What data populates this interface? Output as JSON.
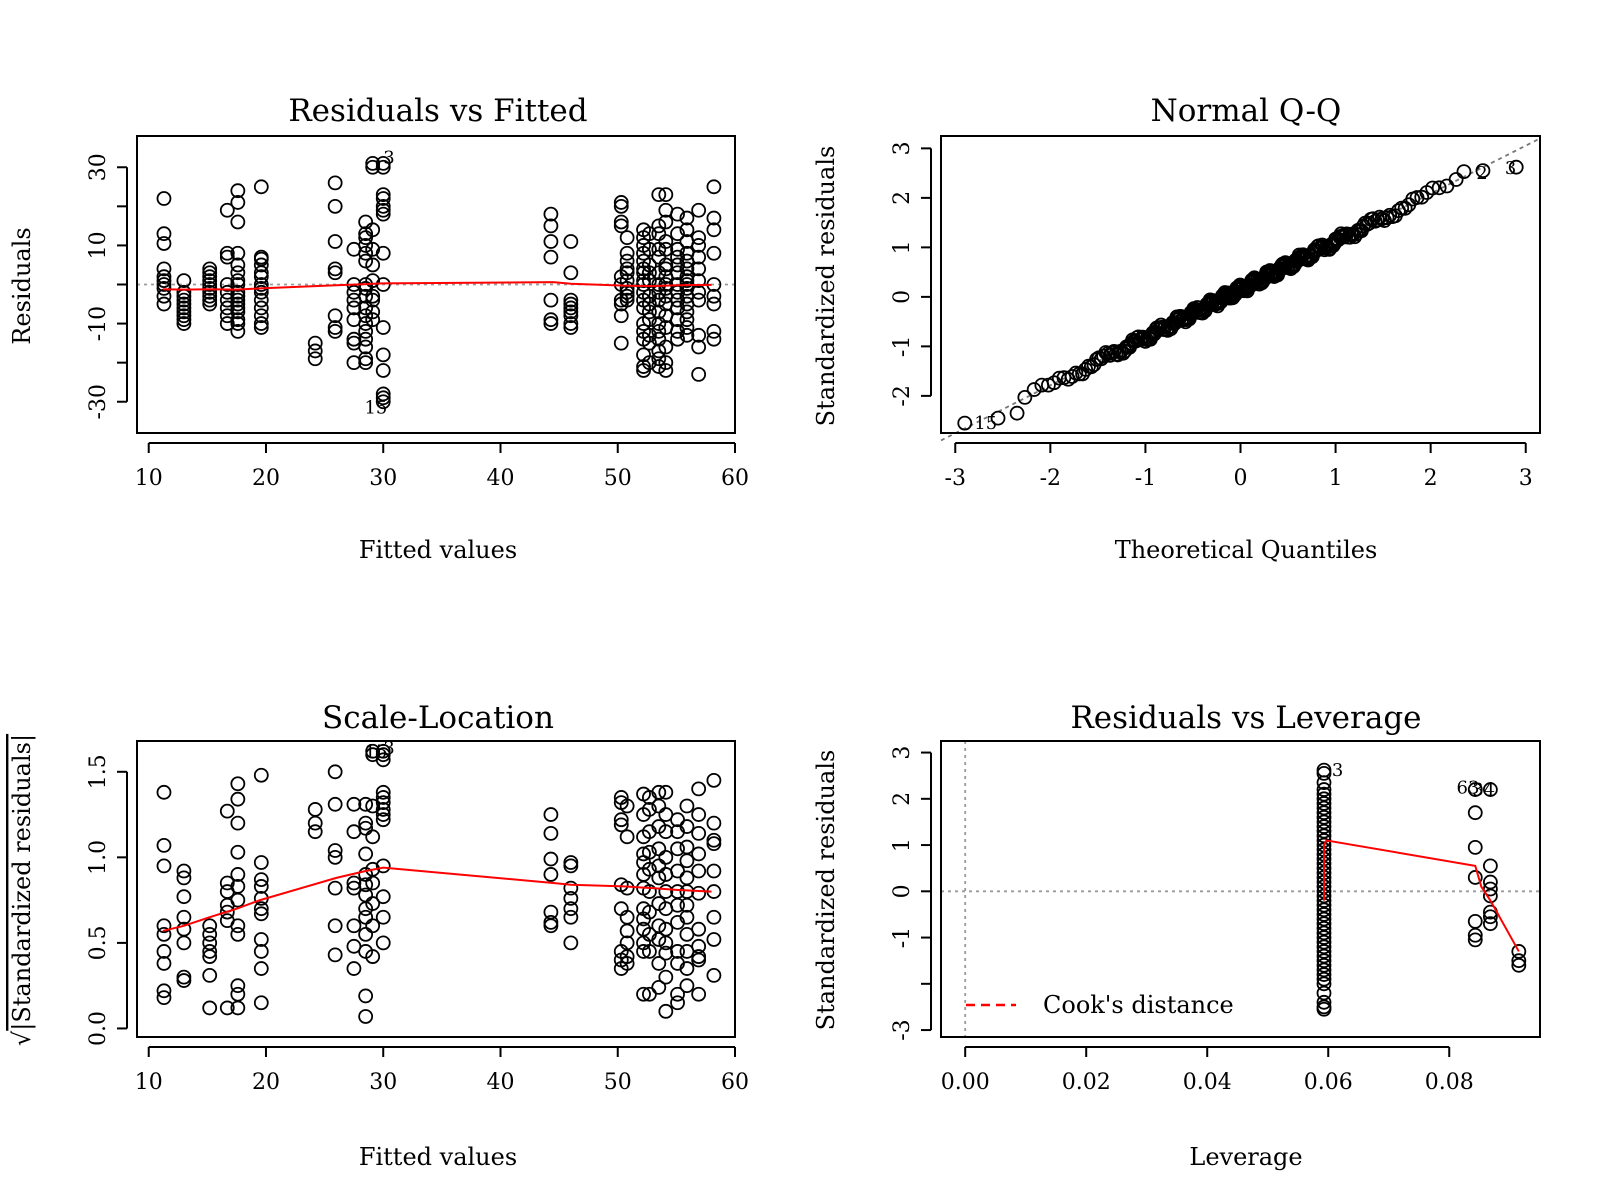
{
  "chart_data": [
    {
      "id": "rvf",
      "type": "scatter",
      "title": "Residuals vs Fitted",
      "xlabel": "Fitted values",
      "ylabel": "Residuals",
      "xlim": [
        9,
        60
      ],
      "ylim": [
        -38,
        38
      ],
      "xticks": [
        10,
        20,
        30,
        40,
        50,
        60
      ],
      "yticks": [
        -30,
        -20,
        -10,
        0,
        10,
        20,
        30
      ],
      "ytick_labels": [
        "-30",
        "",
        "-10",
        "",
        "10",
        "",
        "30"
      ],
      "ref_line": {
        "style": "dotted",
        "y": 0
      },
      "smooth": {
        "x": [
          11.2,
          13,
          15.2,
          17.5,
          19.5,
          26,
          28.5,
          30,
          44.5,
          46,
          50.5,
          53,
          55,
          58
        ],
        "y": [
          -1.2,
          -1.3,
          -1.2,
          -1.3,
          -1.0,
          -0.2,
          0.1,
          0.3,
          0.6,
          0.2,
          -0.3,
          -0.4,
          -0.2,
          -0.1
        ]
      },
      "clusters": [
        {
          "x": 11.3,
          "y": [
            22,
            13,
            10.5,
            4,
            1,
            2,
            0,
            -1,
            -3,
            -5
          ]
        },
        {
          "x": 13.0,
          "y": [
            1,
            -2,
            -4,
            -6,
            -8,
            -10,
            -3,
            -5,
            -7,
            -9
          ]
        },
        {
          "x": 15.2,
          "y": [
            4,
            2,
            0,
            -2,
            -4,
            -5,
            1,
            -1,
            -3,
            3
          ]
        },
        {
          "x": 16.7,
          "y": [
            19,
            8,
            7,
            0,
            -2,
            -4,
            -6,
            -8,
            -10
          ]
        },
        {
          "x": 17.6,
          "y": [
            24,
            21,
            16,
            8,
            3,
            0,
            -2,
            -4,
            -6,
            -9,
            -12,
            5,
            1,
            -3,
            -5,
            -7,
            -10
          ]
        },
        {
          "x": 19.6,
          "y": [
            25,
            7,
            6.5,
            2,
            0,
            -2,
            -4,
            -6,
            -8,
            -10,
            -11,
            5,
            3,
            -1
          ]
        },
        {
          "x": 24.2,
          "y": [
            -15,
            -17,
            -19
          ]
        },
        {
          "x": 25.9,
          "y": [
            26,
            20,
            11,
            4,
            3,
            -8,
            -11,
            -12
          ]
        },
        {
          "x": 27.5,
          "y": [
            9,
            0,
            -2,
            -4,
            -6,
            -9,
            -14,
            -15,
            -20
          ]
        },
        {
          "x": 28.5,
          "y": [
            16,
            13,
            12,
            10,
            8,
            6,
            0,
            -1,
            -3,
            -6,
            -8,
            -10,
            -12,
            -14,
            -16,
            -19,
            -20
          ]
        },
        {
          "x": 29.1,
          "y": [
            31,
            30,
            14,
            9,
            5,
            1,
            -3,
            -4,
            -7,
            -9
          ]
        },
        {
          "x": 30.0,
          "y": [
            31,
            30,
            23,
            22,
            20,
            19,
            18,
            8,
            0,
            -11,
            -18,
            -22,
            -28,
            -29,
            -30
          ]
        },
        {
          "x": 44.3,
          "y": [
            18,
            15,
            11,
            7,
            -4,
            -9,
            -10
          ]
        },
        {
          "x": 46.0,
          "y": [
            11,
            3,
            -4,
            -5,
            -6,
            -7,
            -8,
            -10,
            -11
          ]
        },
        {
          "x": 50.3,
          "y": [
            21,
            20,
            16,
            15,
            2,
            0,
            -4,
            -5,
            -8,
            -15
          ]
        },
        {
          "x": 50.8,
          "y": [
            12,
            8,
            6,
            4,
            3,
            1,
            -1,
            -2,
            -3,
            -4
          ]
        },
        {
          "x": 52.2,
          "y": [
            14,
            12,
            10,
            8,
            6,
            4,
            3,
            1,
            0,
            -2,
            -4,
            -6,
            -10,
            -12,
            -14,
            -18,
            -21,
            -22
          ]
        },
        {
          "x": 52.7,
          "y": [
            13,
            9,
            5,
            3,
            1,
            -3,
            -5,
            -7,
            -9,
            -13,
            -15,
            -20
          ]
        },
        {
          "x": 53.5,
          "y": [
            23,
            15,
            13,
            9,
            7,
            3,
            0,
            -2,
            -4,
            -7,
            -10,
            -12,
            -14,
            -17,
            -19,
            -21
          ]
        },
        {
          "x": 54.1,
          "y": [
            23,
            19,
            16,
            11,
            9,
            5,
            4,
            2,
            0,
            -1,
            -3,
            -5,
            -8,
            -11,
            -16,
            -20,
            -22
          ]
        },
        {
          "x": 55.1,
          "y": [
            18,
            13,
            9,
            7,
            5,
            3,
            0,
            -2,
            -4,
            -6,
            -9,
            -12,
            -14
          ]
        },
        {
          "x": 55.9,
          "y": [
            17,
            14,
            11,
            8,
            6,
            4,
            2,
            1,
            0,
            -1,
            -3,
            -5,
            -7,
            -9,
            -11,
            -13
          ]
        },
        {
          "x": 56.9,
          "y": [
            19,
            12,
            10,
            7,
            4,
            1,
            -2,
            -4,
            -13,
            -16,
            -23
          ]
        },
        {
          "x": 58.2,
          "y": [
            25,
            17,
            14,
            8,
            0,
            -3,
            -5,
            -12,
            -14
          ]
        }
      ],
      "annotations": [
        {
          "text": "15",
          "x": 28.4,
          "y": -31.5
        },
        {
          "text": "3",
          "x": 30.0,
          "y": 32.5
        }
      ]
    },
    {
      "id": "qq",
      "type": "scatter",
      "title": "Normal Q-Q",
      "xlabel": "Theoretical Quantiles",
      "ylabel": "Standardized residuals",
      "xlim": [
        -3.15,
        3.15
      ],
      "ylim": [
        -2.75,
        3.25
      ],
      "xticks": [
        -3,
        -2,
        -1,
        0,
        1,
        2,
        3
      ],
      "yticks": [
        -2,
        -1,
        0,
        1,
        2,
        3
      ],
      "ref_line": {
        "style": "dashed",
        "x": [
          -3.15,
          3.15
        ],
        "y": [
          -2.9,
          3.2
        ]
      },
      "n": 300,
      "tail_points": [
        {
          "x": -2.9,
          "y": -2.55
        },
        {
          "x": -2.55,
          "y": -2.45
        },
        {
          "x": -2.35,
          "y": -2.35
        },
        {
          "x": 2.35,
          "y": 2.53
        },
        {
          "x": 2.55,
          "y": 2.55
        },
        {
          "x": 2.9,
          "y": 2.62
        }
      ],
      "annotations": [
        {
          "text": "15",
          "x": -2.8,
          "y": -2.55
        },
        {
          "text": "2",
          "x": 2.48,
          "y": 2.5
        },
        {
          "text": "3",
          "x": 2.78,
          "y": 2.6
        }
      ]
    },
    {
      "id": "sl",
      "type": "scatter",
      "title": "Scale-Location",
      "xlabel": "Fitted values",
      "ylabel": "√|Standardized residuals|",
      "ylabel_root": "√",
      "ylabel_text": "|Standardized residuals|",
      "xlim": [
        9,
        60
      ],
      "ylim": [
        -0.05,
        1.68
      ],
      "xticks": [
        10,
        20,
        30,
        40,
        50,
        60
      ],
      "yticks": [
        0.0,
        0.5,
        1.0,
        1.5
      ],
      "ytick_labels": [
        "0.0",
        "0.5",
        "1.0",
        "1.5"
      ],
      "smooth": {
        "x": [
          11.2,
          13,
          15.2,
          17.5,
          19.5,
          26,
          28.5,
          30,
          44.5,
          46,
          50.5,
          53,
          55,
          58
        ],
        "y": [
          0.57,
          0.6,
          0.65,
          0.7,
          0.75,
          0.88,
          0.92,
          0.94,
          0.85,
          0.84,
          0.83,
          0.82,
          0.81,
          0.8
        ]
      },
      "clusters": [
        {
          "x": 11.3,
          "y": [
            1.38,
            1.07,
            0.95,
            0.6,
            0.55,
            0.45,
            0.38,
            0.22,
            0.18
          ]
        },
        {
          "x": 13.0,
          "y": [
            0.92,
            0.88,
            0.77,
            0.65,
            0.58,
            0.5,
            0.3,
            0.28
          ]
        },
        {
          "x": 15.2,
          "y": [
            0.6,
            0.55,
            0.5,
            0.45,
            0.42,
            0.31,
            0.12
          ]
        },
        {
          "x": 16.7,
          "y": [
            1.27,
            0.85,
            0.8,
            0.72,
            0.68,
            0.63,
            0.12
          ]
        },
        {
          "x": 17.6,
          "y": [
            1.43,
            1.34,
            1.2,
            1.03,
            0.9,
            0.83,
            0.75,
            0.6,
            0.55,
            0.25,
            0.2,
            0.12
          ]
        },
        {
          "x": 19.6,
          "y": [
            1.48,
            0.97,
            0.87,
            0.83,
            0.76,
            0.7,
            0.67,
            0.52,
            0.45,
            0.35,
            0.15
          ]
        },
        {
          "x": 24.2,
          "y": [
            1.28,
            1.2,
            1.15
          ]
        },
        {
          "x": 25.9,
          "y": [
            1.5,
            1.31,
            1.04,
            1.0,
            0.82,
            0.6,
            0.43
          ]
        },
        {
          "x": 27.5,
          "y": [
            1.31,
            1.15,
            0.85,
            0.82,
            0.6,
            0.48,
            0.35
          ]
        },
        {
          "x": 28.5,
          "y": [
            1.31,
            1.2,
            1.17,
            1.02,
            0.9,
            0.84,
            0.78,
            0.7,
            0.65,
            0.55,
            0.45,
            0.19,
            0.07
          ]
        },
        {
          "x": 29.1,
          "y": [
            1.62,
            1.6,
            1.3,
            1.12,
            0.93,
            0.85,
            0.73,
            0.6,
            0.42
          ]
        },
        {
          "x": 30.0,
          "y": [
            1.62,
            1.6,
            1.57,
            1.38,
            1.35,
            1.32,
            1.28,
            1.25,
            1.22,
            0.95,
            0.77,
            0.65,
            0.5
          ]
        },
        {
          "x": 44.3,
          "y": [
            1.25,
            1.14,
            0.99,
            0.9,
            0.68,
            0.62,
            0.6
          ]
        },
        {
          "x": 46.0,
          "y": [
            0.97,
            0.95,
            0.82,
            0.76,
            0.7,
            0.65,
            0.5
          ]
        },
        {
          "x": 50.3,
          "y": [
            1.35,
            1.32,
            1.22,
            1.19,
            0.84,
            0.7,
            0.45,
            0.4,
            0.35
          ]
        },
        {
          "x": 50.8,
          "y": [
            1.3,
            1.12,
            0.82,
            0.65,
            0.57,
            0.5,
            0.42,
            0.38
          ]
        },
        {
          "x": 52.2,
          "y": [
            1.37,
            1.25,
            1.12,
            1.02,
            0.97,
            0.9,
            0.82,
            0.7,
            0.64,
            0.58,
            0.5,
            0.45,
            0.2
          ]
        },
        {
          "x": 52.7,
          "y": [
            1.35,
            1.28,
            1.15,
            1.03,
            0.93,
            0.8,
            0.68,
            0.55,
            0.45,
            0.2
          ]
        },
        {
          "x": 53.5,
          "y": [
            1.38,
            1.3,
            1.18,
            1.05,
            0.95,
            0.88,
            0.73,
            0.6,
            0.52,
            0.38,
            0.24
          ]
        },
        {
          "x": 54.1,
          "y": [
            1.38,
            1.25,
            1.15,
            1.0,
            0.9,
            0.8,
            0.7,
            0.58,
            0.5,
            0.44,
            0.3,
            0.1
          ]
        },
        {
          "x": 55.1,
          "y": [
            1.22,
            1.15,
            1.05,
            0.92,
            0.8,
            0.72,
            0.62,
            0.45,
            0.38,
            0.2,
            0.15
          ]
        },
        {
          "x": 55.9,
          "y": [
            1.3,
            1.18,
            1.06,
            0.98,
            0.88,
            0.8,
            0.72,
            0.65,
            0.55,
            0.45,
            0.35,
            0.25
          ]
        },
        {
          "x": 56.9,
          "y": [
            1.4,
            1.25,
            1.14,
            1.02,
            0.92,
            0.79,
            0.58,
            0.48,
            0.42,
            0.4,
            0.2
          ]
        },
        {
          "x": 58.2,
          "y": [
            1.45,
            1.2,
            1.1,
            1.08,
            0.92,
            0.8,
            0.65,
            0.52,
            0.31
          ]
        }
      ],
      "annotations": [
        {
          "text": "15",
          "x": 28.4,
          "y": 1.62
        },
        {
          "text": "3",
          "x": 30.0,
          "y": 1.64
        }
      ]
    },
    {
      "id": "rvl",
      "type": "scatter",
      "title": "Residuals vs Leverage",
      "xlabel": "Leverage",
      "ylabel": "Standardized residuals",
      "xlim": [
        -0.004,
        0.095
      ],
      "ylim": [
        -3.15,
        3.25
      ],
      "xticks": [
        0.0,
        0.02,
        0.04,
        0.06,
        0.08
      ],
      "xtick_labels": [
        "0.00",
        "0.02",
        "0.04",
        "0.06",
        "0.08"
      ],
      "yticks": [
        -3,
        -2,
        -1,
        0,
        1,
        2,
        3
      ],
      "ytick_labels": [
        "-3",
        "",
        "-1",
        "0",
        "1",
        "2",
        "3"
      ],
      "ref_lines": [
        {
          "style": "dotted",
          "y": 0
        },
        {
          "style": "dotted",
          "x": 0
        }
      ],
      "smooth": {
        "x": [
          0.0593,
          0.0593,
          0.0597,
          0.0843,
          0.0853,
          0.0868,
          0.0915
        ],
        "y": [
          -0.2,
          1.0,
          1.1,
          0.55,
          0.1,
          -0.2,
          -1.3
        ]
      },
      "clusters": [
        {
          "x": 0.0593,
          "y": [
            2.62,
            2.55,
            2.35,
            2.2,
            2.1,
            2.0,
            1.9,
            1.8,
            1.7,
            1.6,
            1.5,
            1.4,
            1.3,
            1.2,
            1.1,
            1.0,
            0.9,
            0.8,
            0.7,
            0.6,
            0.5,
            0.4,
            0.3,
            0.2,
            0.1,
            0.0,
            -0.1,
            -0.2,
            -0.3,
            -0.4,
            -0.5,
            -0.6,
            -0.7,
            -0.8,
            -0.9,
            -1.0,
            -1.1,
            -1.2,
            -1.3,
            -1.4,
            -1.5,
            -1.6,
            -1.7,
            -1.8,
            -1.9,
            -2.0,
            -2.2,
            -2.4,
            -2.5,
            -2.55
          ]
        },
        {
          "x": 0.0843,
          "y": [
            2.2,
            1.7,
            0.95,
            0.3,
            -0.65,
            -0.95,
            -1.05
          ]
        },
        {
          "x": 0.0868,
          "y": [
            2.2,
            0.55,
            0.2,
            0.05,
            -0.1,
            -0.45,
            -0.55,
            -0.7
          ]
        },
        {
          "x": 0.0915,
          "y": [
            -1.3,
            -1.5,
            -1.6
          ]
        }
      ],
      "annotations": [
        {
          "text": "3",
          "x": 0.0606,
          "y": 2.62
        },
        {
          "text": "63",
          "x": 0.0812,
          "y": 2.25
        },
        {
          "text": "34",
          "x": 0.0838,
          "y": 2.2
        }
      ],
      "legend": {
        "entries": [
          {
            "label": "Cook's distance",
            "color": "#ff0000",
            "style": "dashed"
          }
        ],
        "position": "bottom-left"
      }
    }
  ]
}
